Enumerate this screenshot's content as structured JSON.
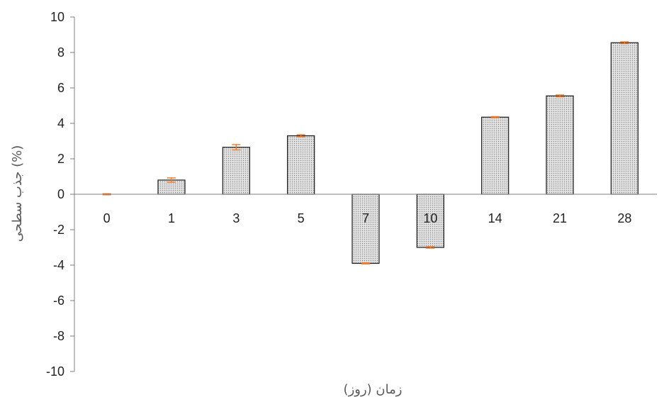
{
  "chart_data": {
    "type": "bar",
    "title": "",
    "xlabel": "زمان (روز)",
    "ylabel": "جذب سطحی (%)",
    "categories": [
      "0",
      "1",
      "3",
      "5",
      "7",
      "10",
      "14",
      "21",
      "28"
    ],
    "values": [
      0,
      0.8,
      2.65,
      3.3,
      -3.9,
      -3.0,
      4.35,
      5.55,
      8.55
    ],
    "errors": [
      0.03,
      0.12,
      0.15,
      0.06,
      0.03,
      0.04,
      0.03,
      0.05,
      0.05
    ],
    "ylim": [
      -10,
      10
    ],
    "yticks": [
      "-10",
      "-8",
      "-6",
      "-4",
      "-2",
      "0",
      "2",
      "4",
      "6",
      "8",
      "10"
    ],
    "grid": false,
    "legend": "none",
    "colors": {
      "bar_fill": "#d9d9d9",
      "bar_pattern": "#9a9a9a",
      "bar_stroke": "#1a1a1a",
      "error_bar": "#ed7d31",
      "axis": "#7f7f7f"
    }
  }
}
